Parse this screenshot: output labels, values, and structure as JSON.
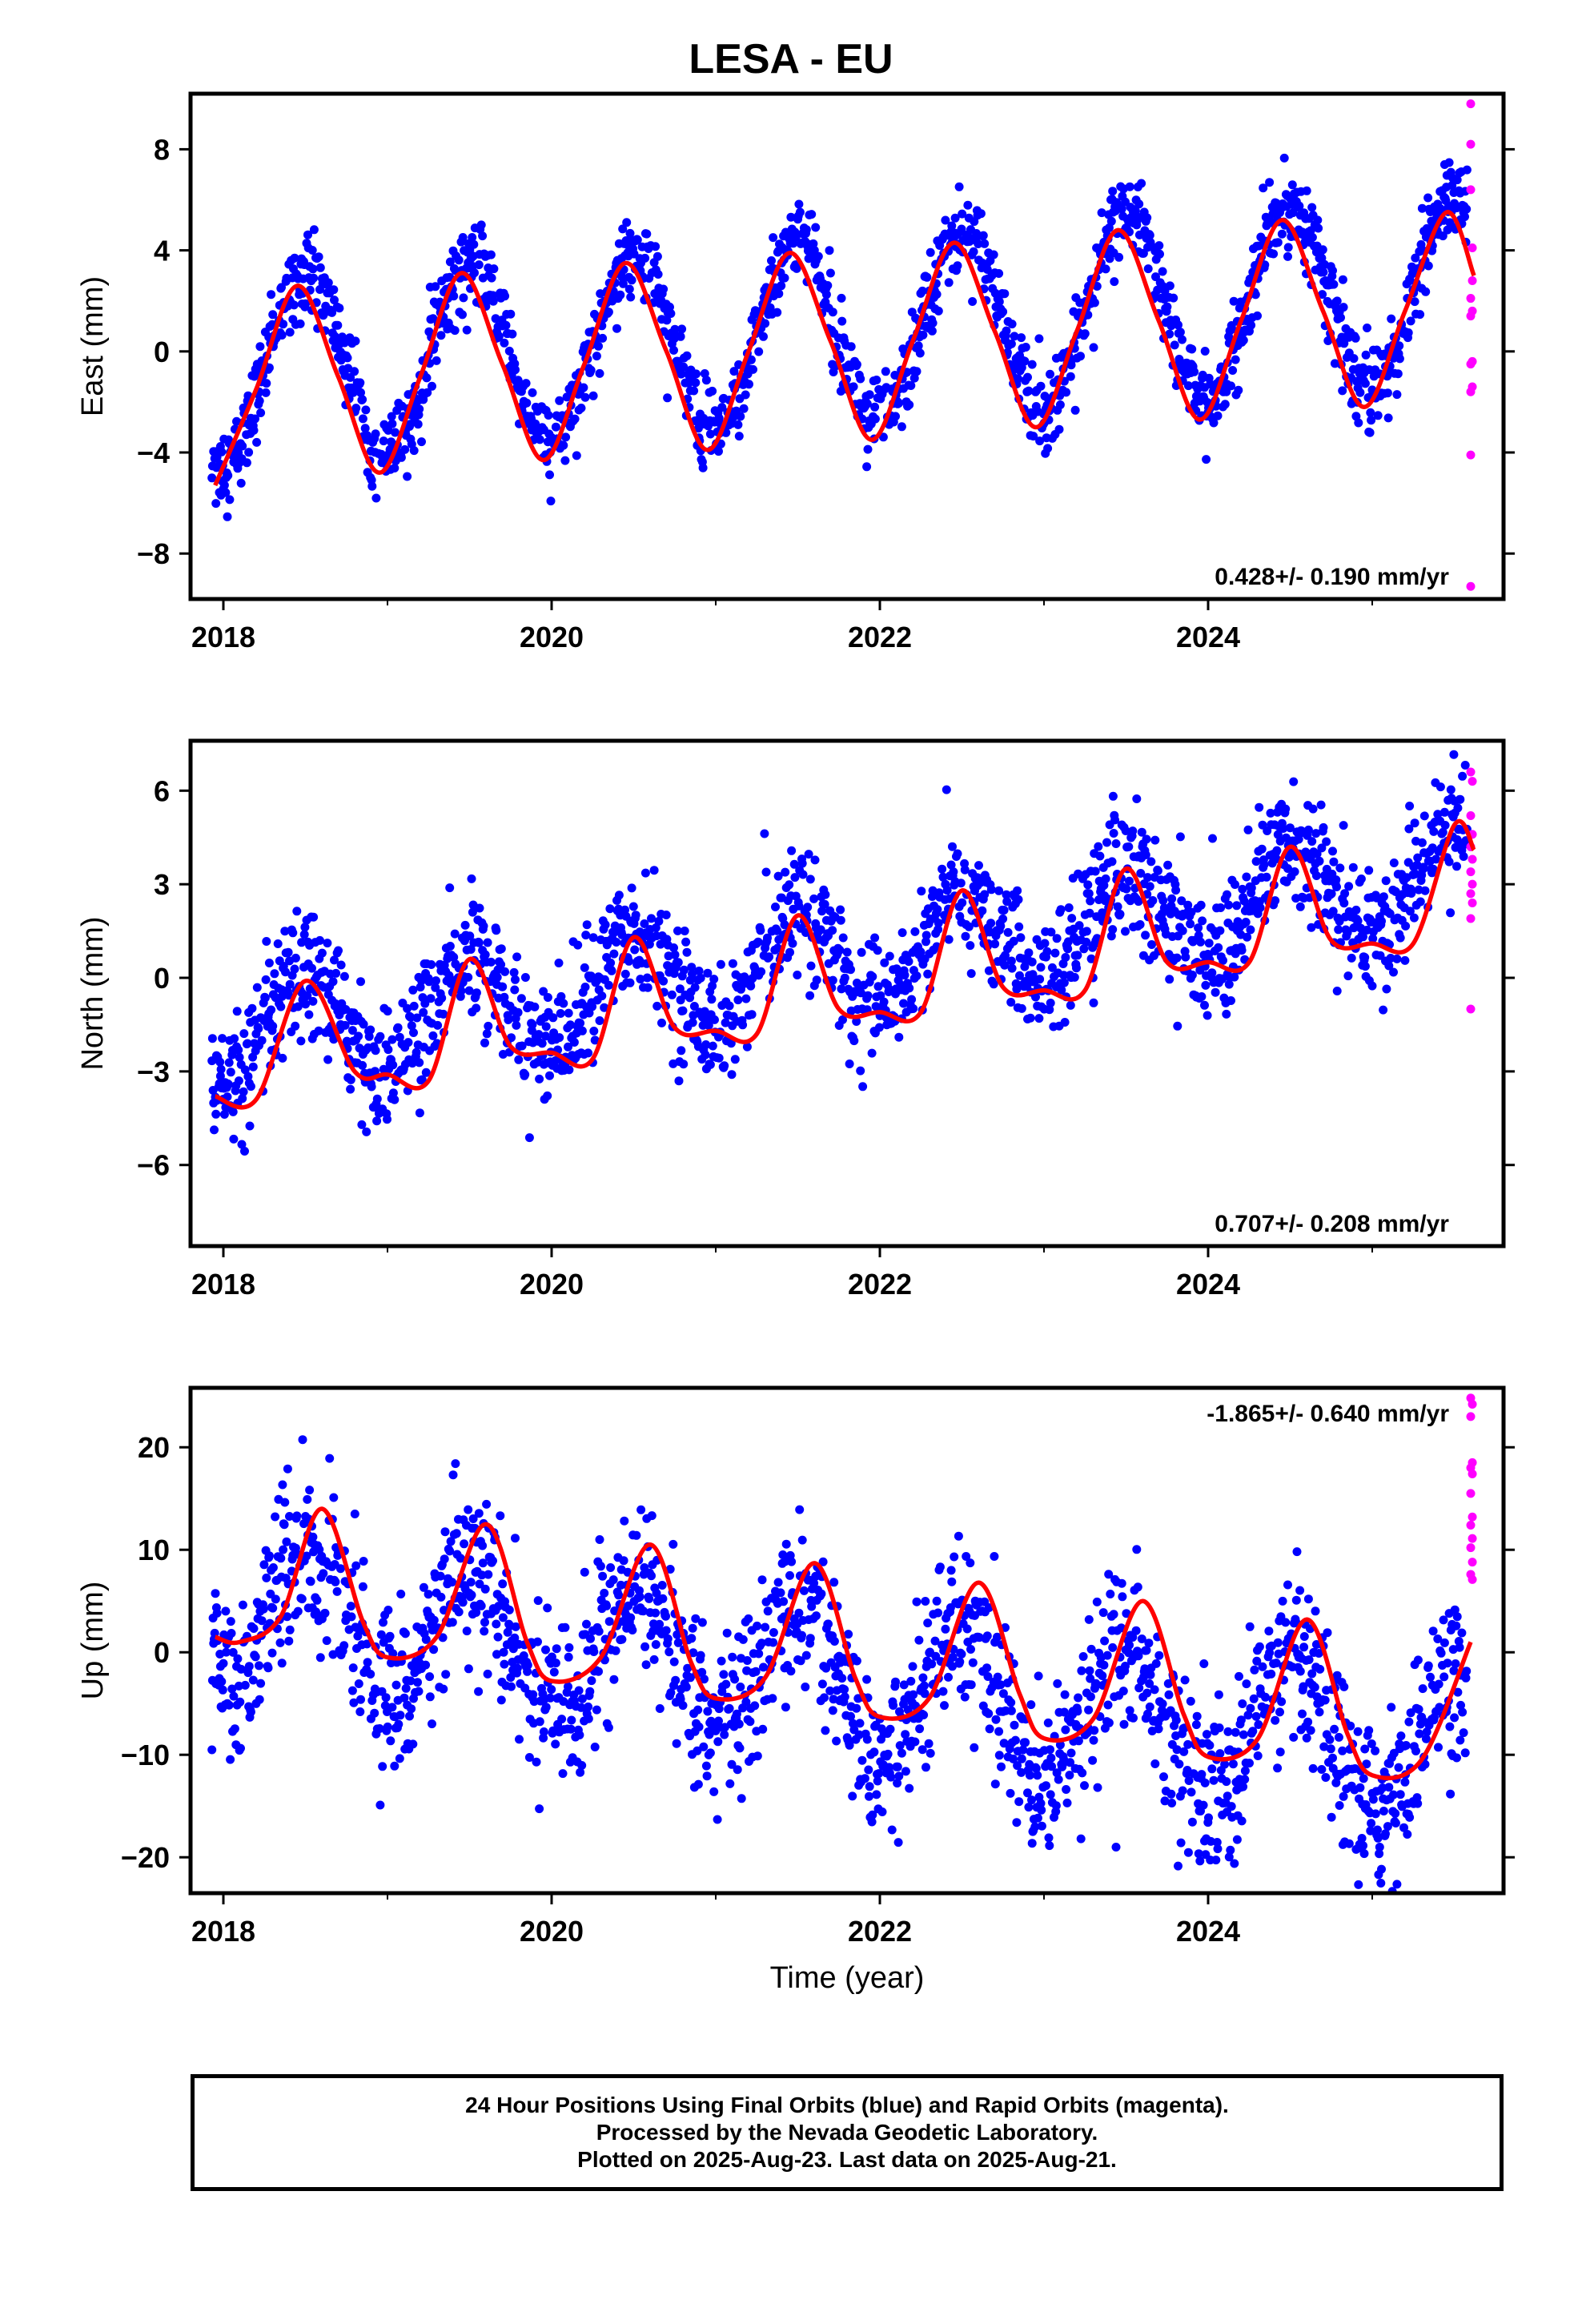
{
  "title": "LESA - EU",
  "caption": {
    "lines": [
      "24 Hour Positions Using Final Orbits (blue) and Rapid Orbits (magenta).",
      "Processed by the Nevada Geodetic Laboratory.",
      "Plotted on 2025-Aug-23. Last data on 2025-Aug-21."
    ]
  },
  "colors": {
    "final_orbits": "#0000ff",
    "rapid_orbits": "#ff00ff",
    "fit_curve": "#ff0000",
    "frame": "#000000"
  },
  "chart_data": [
    {
      "type": "scatter",
      "ylabel": "East (mm)",
      "xlabel": "",
      "xlim": [
        2017.8,
        2025.8
      ],
      "ylim": [
        -9.8,
        10.2
      ],
      "x_ticks": [
        2018,
        2020,
        2022,
        2024
      ],
      "y_ticks": [
        -8,
        -4,
        0,
        4,
        8
      ],
      "rate_annotation": "0.428+/- 0.190 mm/yr",
      "annotation_position": "bottom-right",
      "model": {
        "offset": -0.8,
        "rate_mm_per_yr": 0.428,
        "amp_cos": -3.7,
        "amp_sin": 0,
        "noise": 0.8
      },
      "fit_curve": {
        "x": [
          2017.95,
          2018.2,
          2018.45,
          2018.7,
          2018.95,
          2019.2,
          2019.45,
          2019.7,
          2019.95,
          2020.2,
          2020.45,
          2020.7,
          2020.95,
          2021.2,
          2021.45,
          2021.7,
          2021.95,
          2022.2,
          2022.45,
          2022.7,
          2022.95,
          2023.2,
          2023.45,
          2023.7,
          2023.95,
          2024.2,
          2024.45,
          2024.7,
          2024.95,
          2025.2,
          2025.45,
          2025.62
        ],
        "y": [
          -5.3,
          -1.5,
          2.6,
          -1.0,
          -4.8,
          -1.0,
          3.1,
          -0.5,
          -4.3,
          -0.5,
          3.5,
          0.0,
          -3.9,
          0.0,
          3.9,
          0.4,
          -3.5,
          0.4,
          4.3,
          0.8,
          -3.0,
          0.8,
          4.8,
          1.2,
          -2.7,
          1.2,
          5.2,
          1.6,
          -2.2,
          1.6,
          5.5,
          3.0
        ]
      },
      "rapid_points": [
        {
          "x": 2025.6,
          "y": 9.8
        },
        {
          "x": 2025.6,
          "y": 8.2
        },
        {
          "x": 2025.6,
          "y": 6.4
        },
        {
          "x": 2025.61,
          "y": 4.1
        },
        {
          "x": 2025.61,
          "y": 2.8
        },
        {
          "x": 2025.6,
          "y": 2.1
        },
        {
          "x": 2025.61,
          "y": 1.6
        },
        {
          "x": 2025.6,
          "y": 1.4
        },
        {
          "x": 2025.61,
          "y": -0.4
        },
        {
          "x": 2025.6,
          "y": -0.5
        },
        {
          "x": 2025.61,
          "y": -1.4
        },
        {
          "x": 2025.6,
          "y": -1.6
        },
        {
          "x": 2025.6,
          "y": -4.1
        },
        {
          "x": 2025.6,
          "y": -9.3
        }
      ]
    },
    {
      "type": "scatter",
      "ylabel": "North (mm)",
      "xlabel": "",
      "xlim": [
        2017.8,
        2025.8
      ],
      "ylim": [
        -8.6,
        7.6
      ],
      "x_ticks": [
        2018,
        2020,
        2022,
        2024
      ],
      "y_ticks": [
        -6,
        -3,
        0,
        3,
        6
      ],
      "rate_annotation": "0.707+/- 0.208 mm/yr",
      "annotation_position": "bottom-right",
      "model": {
        "offset": -2.0,
        "rate_mm_per_yr": 0.707,
        "amp_cos": -1.6,
        "amp_sin": 0,
        "noise": 1.0
      },
      "fit_curve": {
        "x": [
          2017.95,
          2018.2,
          2018.5,
          2018.8,
          2019.0,
          2019.25,
          2019.5,
          2019.75,
          2020.0,
          2020.25,
          2020.5,
          2020.75,
          2021.0,
          2021.25,
          2021.5,
          2021.75,
          2022.0,
          2022.25,
          2022.5,
          2022.75,
          2023.0,
          2023.25,
          2023.5,
          2023.75,
          2024.0,
          2024.25,
          2024.5,
          2024.75,
          2025.0,
          2025.25,
          2025.5,
          2025.62
        ],
        "y": [
          -3.8,
          -3.9,
          -0.1,
          -3.0,
          -3.1,
          -3.3,
          0.6,
          -2.2,
          -2.4,
          -2.6,
          1.3,
          -1.6,
          -1.7,
          -1.8,
          2.0,
          -1.0,
          -1.1,
          -1.1,
          2.8,
          -0.3,
          -0.4,
          -0.4,
          3.5,
          0.5,
          0.5,
          0.5,
          4.2,
          1.2,
          1.1,
          1.1,
          4.9,
          4.1
        ]
      },
      "rapid_points": [
        {
          "x": 2025.6,
          "y": 6.6
        },
        {
          "x": 2025.61,
          "y": 6.3
        },
        {
          "x": 2025.6,
          "y": 5.2
        },
        {
          "x": 2025.61,
          "y": 4.6
        },
        {
          "x": 2025.6,
          "y": 4.2
        },
        {
          "x": 2025.61,
          "y": 3.8
        },
        {
          "x": 2025.6,
          "y": 3.4
        },
        {
          "x": 2025.61,
          "y": 3.0
        },
        {
          "x": 2025.6,
          "y": 2.7
        },
        {
          "x": 2025.61,
          "y": 2.4
        },
        {
          "x": 2025.6,
          "y": 1.9
        },
        {
          "x": 2025.6,
          "y": -1.0
        }
      ]
    },
    {
      "type": "scatter",
      "ylabel": "Up (mm)",
      "xlabel": "Time (year)",
      "xlim": [
        2017.8,
        2025.8
      ],
      "ylim": [
        -23.5,
        25.8
      ],
      "x_ticks": [
        2018,
        2020,
        2022,
        2024
      ],
      "y_ticks": [
        -20,
        -10,
        0,
        10,
        20
      ],
      "rate_annotation": "-1.865+/- 0.640 mm/yr",
      "annotation_position": "top-right",
      "model": {
        "offset": 4.3,
        "rate_mm_per_yr": -1.865,
        "amp_cos": -6.5,
        "amp_sin": 0,
        "noise": 4.0
      },
      "fit_curve": {
        "x": [
          2017.95,
          2018.1,
          2018.35,
          2018.6,
          2018.85,
          2019.0,
          2019.3,
          2019.6,
          2019.85,
          2020.0,
          2020.3,
          2020.6,
          2020.85,
          2021.0,
          2021.3,
          2021.6,
          2021.85,
          2022.0,
          2022.3,
          2022.6,
          2022.85,
          2023.0,
          2023.3,
          2023.6,
          2023.85,
          2024.0,
          2024.3,
          2024.6,
          2024.85,
          2025.0,
          2025.3,
          2025.6
        ],
        "y": [
          1.5,
          1.0,
          3.5,
          14.0,
          3.0,
          -0.5,
          1.5,
          12.5,
          1.0,
          -2.8,
          -0.5,
          10.5,
          -1.0,
          -4.5,
          -2.5,
          8.7,
          -2.5,
          -6.3,
          -4.5,
          6.8,
          -4.0,
          -8.4,
          -6.5,
          5.0,
          -6.0,
          -10.2,
          -8.5,
          3.2,
          -8.0,
          -12.0,
          -10.5,
          1.0
        ]
      },
      "rapid_points": [
        {
          "x": 2025.6,
          "y": 24.8
        },
        {
          "x": 2025.61,
          "y": 24.2
        },
        {
          "x": 2025.6,
          "y": 23.0
        },
        {
          "x": 2025.61,
          "y": 18.5
        },
        {
          "x": 2025.6,
          "y": 18.0
        },
        {
          "x": 2025.61,
          "y": 17.4
        },
        {
          "x": 2025.6,
          "y": 15.5
        },
        {
          "x": 2025.61,
          "y": 13.2
        },
        {
          "x": 2025.6,
          "y": 12.4
        },
        {
          "x": 2025.61,
          "y": 11.1
        },
        {
          "x": 2025.6,
          "y": 10.2
        },
        {
          "x": 2025.61,
          "y": 8.8
        },
        {
          "x": 2025.6,
          "y": 7.6
        },
        {
          "x": 2025.61,
          "y": 7.1
        }
      ]
    }
  ]
}
